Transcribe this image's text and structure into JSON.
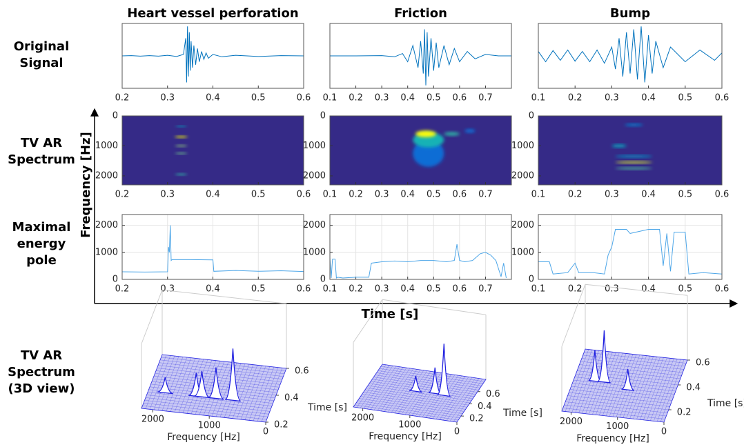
{
  "row_labels": [
    [
      "Original",
      "Signal"
    ],
    [
      "TV AR",
      "Spectrum"
    ],
    [
      "Maximal",
      "energy",
      "pole"
    ],
    [
      "TV AR",
      "Spectrum",
      "(3D view)"
    ]
  ],
  "shared_axes": {
    "ylabel": "Frequency [Hz]",
    "xlabel": "Time [s]"
  },
  "chart_data": [
    {
      "type": "line",
      "title": "Heart vessel perforation",
      "color": "#0072bd",
      "xlim": [
        0.2,
        0.6
      ],
      "xticks": [
        0.2,
        0.3,
        0.4,
        0.5,
        0.6
      ],
      "ylim": [
        -1.1,
        1.1
      ],
      "x": [
        0.2,
        0.22,
        0.24,
        0.26,
        0.28,
        0.3,
        0.32,
        0.335,
        0.34,
        0.342,
        0.344,
        0.346,
        0.348,
        0.35,
        0.352,
        0.355,
        0.358,
        0.362,
        0.366,
        0.37,
        0.375,
        0.38,
        0.385,
        0.39,
        0.4,
        0.42,
        0.45,
        0.5,
        0.55,
        0.6
      ],
      "values": [
        0,
        0.01,
        -0.01,
        0.01,
        -0.01,
        0.02,
        -0.02,
        0.05,
        0.6,
        -0.9,
        1,
        -0.7,
        0.8,
        -0.5,
        0.5,
        -0.4,
        0.35,
        -0.3,
        0.25,
        -0.2,
        0.15,
        -0.12,
        0.1,
        -0.08,
        0.05,
        -0.03,
        0.02,
        -0.02,
        0.01,
        0
      ]
    },
    {
      "type": "line",
      "title": "Friction",
      "color": "#0072bd",
      "xlim": [
        0.1,
        0.8
      ],
      "xticks": [
        0.1,
        0.2,
        0.3,
        0.4,
        0.5,
        0.6,
        0.7
      ],
      "ylim": [
        -1.1,
        1.1
      ],
      "x": [
        0.1,
        0.2,
        0.3,
        0.35,
        0.38,
        0.4,
        0.42,
        0.44,
        0.45,
        0.46,
        0.465,
        0.47,
        0.475,
        0.48,
        0.49,
        0.5,
        0.51,
        0.52,
        0.54,
        0.56,
        0.58,
        0.6,
        0.63,
        0.66,
        0.7,
        0.75,
        0.8
      ],
      "values": [
        0,
        0,
        0.01,
        -0.03,
        0.08,
        -0.2,
        0.35,
        -0.4,
        0.5,
        -0.6,
        0.9,
        -1,
        0.8,
        -0.7,
        0.6,
        -0.5,
        0.45,
        -0.4,
        0.35,
        -0.3,
        0.25,
        -0.2,
        0.15,
        -0.1,
        0.05,
        0,
        0
      ]
    },
    {
      "type": "line",
      "title": "Bump",
      "color": "#0072bd",
      "xlim": [
        0.1,
        0.6
      ],
      "xticks": [
        0.1,
        0.2,
        0.3,
        0.4,
        0.5,
        0.6
      ],
      "ylim": [
        -1.1,
        1.1
      ],
      "x": [
        0.1,
        0.12,
        0.14,
        0.16,
        0.18,
        0.2,
        0.22,
        0.24,
        0.26,
        0.28,
        0.3,
        0.31,
        0.32,
        0.33,
        0.34,
        0.35,
        0.36,
        0.37,
        0.38,
        0.39,
        0.4,
        0.41,
        0.42,
        0.44,
        0.46,
        0.5,
        0.54,
        0.58,
        0.6
      ],
      "values": [
        0.15,
        -0.2,
        0.18,
        -0.15,
        0.2,
        -0.18,
        0.15,
        -0.2,
        0.2,
        -0.25,
        0.3,
        -0.45,
        0.6,
        -0.7,
        0.8,
        -0.6,
        0.9,
        -0.8,
        1,
        -0.9,
        0.7,
        -0.6,
        0.5,
        -0.4,
        0.3,
        -0.2,
        0.2,
        -0.15,
        0.1
      ]
    },
    {
      "type": "heatmap",
      "colors": [
        "#352a87",
        "#0f5cdd",
        "#12b2b5",
        "#a5be6a",
        "#f9fb0e"
      ],
      "xlim": [
        0.2,
        0.6
      ],
      "xticks": [
        0.2,
        0.3,
        0.4,
        0.5,
        0.6
      ],
      "ylim": [
        0,
        2300
      ],
      "yticks": [
        0,
        1000,
        2000
      ],
      "reverse_y": true,
      "spots": [
        {
          "t": 0.33,
          "dt": 0.012,
          "f": 350,
          "df": 25,
          "level": 0.45
        },
        {
          "t": 0.33,
          "dt": 0.014,
          "f": 700,
          "df": 30,
          "level": 1
        },
        {
          "t": 0.33,
          "dt": 0.013,
          "f": 1000,
          "df": 30,
          "level": 0.7
        },
        {
          "t": 0.33,
          "dt": 0.013,
          "f": 1250,
          "df": 30,
          "level": 0.65
        },
        {
          "t": 0.33,
          "dt": 0.013,
          "f": 1950,
          "df": 30,
          "level": 0.55
        }
      ]
    },
    {
      "type": "heatmap",
      "colors": [
        "#352a87",
        "#0f5cdd",
        "#12b2b5",
        "#a5be6a",
        "#f9fb0e"
      ],
      "xlim": [
        0.1,
        0.8
      ],
      "xticks": [
        0.1,
        0.2,
        0.3,
        0.4,
        0.5,
        0.6,
        0.7
      ],
      "ylim": [
        0,
        2300
      ],
      "yticks": [
        0,
        1000,
        2000
      ],
      "reverse_y": true,
      "spots": [
        {
          "t": 0.48,
          "dt": 0.06,
          "f": 1250,
          "df": 450,
          "level": 0.3
        },
        {
          "t": 0.48,
          "dt": 0.06,
          "f": 800,
          "df": 250,
          "level": 0.5
        },
        {
          "t": 0.57,
          "dt": 0.03,
          "f": 600,
          "df": 60,
          "level": 0.55
        },
        {
          "t": 0.64,
          "dt": 0.02,
          "f": 500,
          "df": 60,
          "level": 0.3
        },
        {
          "t": 0.47,
          "dt": 0.04,
          "f": 600,
          "df": 110,
          "level": 1
        }
      ]
    },
    {
      "type": "heatmap",
      "colors": [
        "#352a87",
        "#0f5cdd",
        "#12b2b5",
        "#a5be6a",
        "#f9fb0e"
      ],
      "xlim": [
        0.1,
        0.6
      ],
      "xticks": [
        0.1,
        0.2,
        0.3,
        0.4,
        0.5,
        0.6
      ],
      "ylim": [
        0,
        2300
      ],
      "yticks": [
        0,
        1000,
        2000
      ],
      "reverse_y": true,
      "spots": [
        {
          "t": 0.36,
          "dt": 0.025,
          "f": 300,
          "df": 40,
          "level": 0.35
        },
        {
          "t": 0.32,
          "dt": 0.02,
          "f": 1000,
          "df": 50,
          "level": 0.45
        },
        {
          "t": 0.36,
          "dt": 0.05,
          "f": 1350,
          "df": 40,
          "level": 0.4
        },
        {
          "t": 0.36,
          "dt": 0.05,
          "f": 1750,
          "df": 35,
          "level": 0.6
        },
        {
          "t": 0.36,
          "dt": 0.05,
          "f": 1550,
          "df": 35,
          "level": 0.9
        }
      ]
    },
    {
      "type": "line",
      "color": "#4da6e8",
      "grid": true,
      "xlim": [
        0.2,
        0.6
      ],
      "xticks": [
        0.2,
        0.3,
        0.4,
        0.5,
        0.6
      ],
      "ylim": [
        0,
        2400
      ],
      "yticks": [
        0,
        1000,
        2000
      ],
      "x": [
        0.2,
        0.25,
        0.3,
        0.302,
        0.304,
        0.306,
        0.308,
        0.31,
        0.35,
        0.4,
        0.402,
        0.45,
        0.5,
        0.55,
        0.6
      ],
      "values": [
        280,
        270,
        280,
        1200,
        1000,
        2000,
        700,
        730,
        730,
        720,
        300,
        330,
        300,
        320,
        290
      ]
    },
    {
      "type": "line",
      "color": "#4da6e8",
      "grid": true,
      "xlim": [
        0.1,
        0.8
      ],
      "xticks": [
        0.1,
        0.2,
        0.3,
        0.4,
        0.5,
        0.6,
        0.7
      ],
      "ylim": [
        0,
        2400
      ],
      "yticks": [
        0,
        1000,
        2000
      ],
      "x": [
        0.1,
        0.105,
        0.11,
        0.12,
        0.125,
        0.13,
        0.15,
        0.2,
        0.25,
        0.26,
        0.3,
        0.35,
        0.4,
        0.45,
        0.5,
        0.55,
        0.58,
        0.59,
        0.6,
        0.62,
        0.65,
        0.68,
        0.7,
        0.72,
        0.74,
        0.76,
        0.77,
        0.78
      ],
      "values": [
        800,
        50,
        750,
        750,
        50,
        80,
        50,
        80,
        80,
        600,
        650,
        680,
        650,
        700,
        700,
        650,
        700,
        1300,
        700,
        650,
        700,
        950,
        1000,
        900,
        700,
        100,
        600,
        50
      ]
    },
    {
      "type": "line",
      "color": "#4da6e8",
      "grid": true,
      "xlim": [
        0.1,
        0.6
      ],
      "xticks": [
        0.1,
        0.2,
        0.3,
        0.4,
        0.5,
        0.6
      ],
      "ylim": [
        0,
        2400
      ],
      "yticks": [
        0,
        1000,
        2000
      ],
      "x": [
        0.1,
        0.13,
        0.14,
        0.18,
        0.2,
        0.21,
        0.25,
        0.28,
        0.29,
        0.3,
        0.31,
        0.34,
        0.35,
        0.4,
        0.43,
        0.44,
        0.45,
        0.46,
        0.47,
        0.5,
        0.51,
        0.55,
        0.6
      ],
      "values": [
        650,
        650,
        200,
        250,
        600,
        250,
        250,
        200,
        900,
        1200,
        1850,
        1850,
        1700,
        1850,
        1850,
        500,
        1700,
        300,
        1750,
        1750,
        200,
        250,
        200
      ]
    },
    {
      "type": "surface3d",
      "color": "#2020e0",
      "xlabel": "Frequency [Hz]",
      "ylabel": "Time [s]",
      "flim": [
        0,
        2200
      ],
      "fticks": [
        2000,
        1000,
        0
      ],
      "tlim": [
        0.2,
        0.6
      ],
      "tticks": [
        0.2,
        0.4,
        0.6
      ],
      "peaks": [
        {
          "f": 1900,
          "t": 0.33,
          "h": 0.3
        },
        {
          "f": 1350,
          "t": 0.33,
          "h": 0.45
        },
        {
          "f": 1250,
          "t": 0.33,
          "h": 0.5
        },
        {
          "f": 1000,
          "t": 0.33,
          "h": 0.6
        },
        {
          "f": 700,
          "t": 0.33,
          "h": 1
        }
      ]
    },
    {
      "type": "surface3d",
      "color": "#2020e0",
      "xlabel": "Frequency [Hz]",
      "ylabel": "Time [s]",
      "flim": [
        0,
        2200
      ],
      "fticks": [
        2000,
        1000,
        0
      ],
      "tlim": [
        0.1,
        0.8
      ],
      "tticks": [
        0.2,
        0.4,
        0.6
      ],
      "peaks": [
        {
          "f": 1200,
          "t": 0.47,
          "h": 0.3
        },
        {
          "f": 800,
          "t": 0.48,
          "h": 0.5
        },
        {
          "f": 600,
          "t": 0.47,
          "h": 1
        }
      ]
    },
    {
      "type": "surface3d",
      "color": "#2020e0",
      "xlabel": "Frequency [Hz]",
      "ylabel": "Time [s]",
      "flim": [
        0,
        2200
      ],
      "fticks": [
        2000,
        1000,
        0
      ],
      "tlim": [
        0.1,
        0.6
      ],
      "tticks": [
        0.2,
        0.4,
        0.6
      ],
      "peaks": [
        {
          "f": 1000,
          "t": 0.32,
          "h": 0.4
        },
        {
          "f": 1750,
          "t": 0.36,
          "h": 0.6
        },
        {
          "f": 1550,
          "t": 0.36,
          "h": 1
        }
      ]
    }
  ]
}
